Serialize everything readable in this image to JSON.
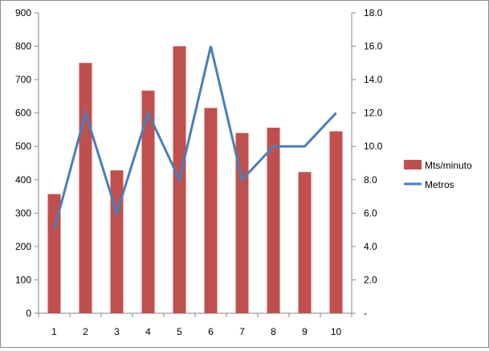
{
  "chart_data": {
    "type": "bar+line",
    "categories": [
      "1",
      "2",
      "3",
      "4",
      "5",
      "6",
      "7",
      "8",
      "9",
      "10"
    ],
    "series": [
      {
        "name": "Mts/minuto",
        "type": "bar",
        "axis": "left",
        "color": "#c0504d",
        "values": [
          357,
          750,
          428,
          667,
          800,
          615,
          540,
          556,
          423,
          545
        ]
      },
      {
        "name": "Metros",
        "type": "line",
        "axis": "right",
        "color": "#4a7ebb",
        "values": [
          5,
          12,
          6,
          12,
          8,
          16,
          8,
          10,
          10,
          12
        ]
      }
    ],
    "y_left": {
      "min": 0,
      "max": 900,
      "ticks": [
        "0",
        "100",
        "200",
        "300",
        "400",
        "500",
        "600",
        "700",
        "800",
        "900"
      ]
    },
    "y_right": {
      "min": 0,
      "max": 18,
      "ticks": [
        "-",
        "2.0",
        "4.0",
        "6.0",
        "8.0",
        "10.0",
        "12.0",
        "14.0",
        "16.0",
        "18.0"
      ]
    },
    "legend_position": "right",
    "grid": false
  }
}
